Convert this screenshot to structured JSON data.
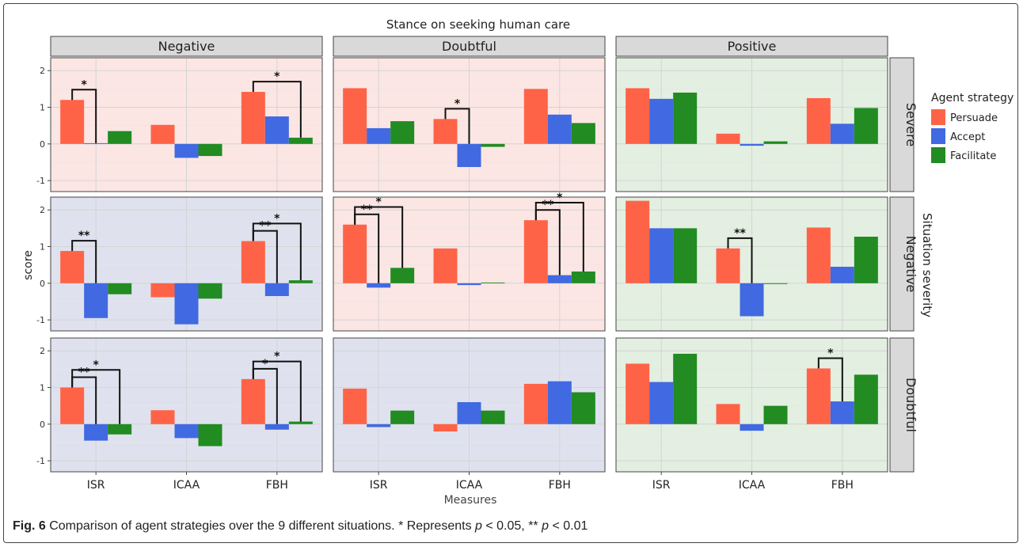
{
  "caption": {
    "label": "Fig. 6",
    "text": " Comparison of agent strategies over the 9 different situations. * Represents ",
    "p1": "p",
    "t1": " < 0.05, ** ",
    "p2": "p",
    "t2": " < 0.01"
  },
  "chart_data": {
    "type": "bar",
    "title": "Stance on seeking human care",
    "xlabel": "Measures",
    "ylabel": "score",
    "right_strip_label": "Situation severity",
    "categories": [
      "ISR",
      "ICAA",
      "FBH"
    ],
    "ylim": [
      -1.3,
      2.35
    ],
    "yticks": [
      -1,
      0,
      1,
      2
    ],
    "grid": true,
    "legend": {
      "title": "Agent strategy",
      "position": "right",
      "entries": [
        "Persuade",
        "Accept",
        "Facilitate"
      ]
    },
    "series_colors": [
      "#ff6347",
      "#4169e1",
      "#228b22"
    ],
    "bg_colors": {
      "pink": "#fbe6e4",
      "blue": "#dfe2ee",
      "green": "#e3efe1"
    },
    "columns": [
      "Negative",
      "Doubtful",
      "Positive"
    ],
    "rows": [
      "Severe",
      "Negative",
      "Doubtful"
    ],
    "panels": [
      {
        "row": "Severe",
        "col": "Negative",
        "bg": "pink",
        "series": [
          {
            "name": "Persuade",
            "values": [
              1.2,
              0.52,
              1.42
            ]
          },
          {
            "name": "Accept",
            "values": [
              0.02,
              -0.38,
              0.75
            ]
          },
          {
            "name": "Facilitate",
            "values": [
              0.35,
              -0.33,
              0.17
            ]
          }
        ],
        "sig": [
          {
            "cat": 0,
            "to": 1,
            "label": "*",
            "level": 0
          },
          {
            "cat": 2,
            "to": 2,
            "label": "*",
            "level": 0
          }
        ]
      },
      {
        "row": "Severe",
        "col": "Doubtful",
        "bg": "pink",
        "series": [
          {
            "name": "Persuade",
            "values": [
              1.52,
              0.68,
              1.5
            ]
          },
          {
            "name": "Accept",
            "values": [
              0.43,
              -0.63,
              0.8
            ]
          },
          {
            "name": "Facilitate",
            "values": [
              0.62,
              -0.08,
              0.57
            ]
          }
        ],
        "sig": [
          {
            "cat": 1,
            "to": 1,
            "label": "*",
            "level": 0
          }
        ]
      },
      {
        "row": "Severe",
        "col": "Positive",
        "bg": "green",
        "series": [
          {
            "name": "Persuade",
            "values": [
              1.52,
              0.28,
              1.25
            ]
          },
          {
            "name": "Accept",
            "values": [
              1.23,
              -0.05,
              0.55
            ]
          },
          {
            "name": "Facilitate",
            "values": [
              1.4,
              0.07,
              0.98
            ]
          }
        ],
        "sig": []
      },
      {
        "row": "Negative",
        "col": "Negative",
        "bg": "blue",
        "series": [
          {
            "name": "Persuade",
            "values": [
              0.88,
              -0.38,
              1.15
            ]
          },
          {
            "name": "Accept",
            "values": [
              -0.95,
              -1.12,
              -0.35
            ]
          },
          {
            "name": "Facilitate",
            "values": [
              -0.3,
              -0.42,
              0.08
            ]
          }
        ],
        "sig": [
          {
            "cat": 0,
            "to": 1,
            "label": "**",
            "level": 0
          },
          {
            "cat": 2,
            "to": 1,
            "label": "**",
            "level": 0
          },
          {
            "cat": 2,
            "to": 2,
            "label": "*",
            "level": 1
          }
        ]
      },
      {
        "row": "Negative",
        "col": "Doubtful",
        "bg": "pink",
        "series": [
          {
            "name": "Persuade",
            "values": [
              1.6,
              0.95,
              1.72
            ]
          },
          {
            "name": "Accept",
            "values": [
              -0.12,
              -0.05,
              0.22
            ]
          },
          {
            "name": "Facilitate",
            "values": [
              0.42,
              0.02,
              0.32
            ]
          }
        ],
        "sig": [
          {
            "cat": 0,
            "to": 1,
            "label": "**",
            "level": 0
          },
          {
            "cat": 0,
            "to": 2,
            "label": "*",
            "level": 1
          },
          {
            "cat": 2,
            "to": 1,
            "label": "**",
            "level": 0
          },
          {
            "cat": 2,
            "to": 2,
            "label": "*",
            "level": 1
          }
        ]
      },
      {
        "row": "Negative",
        "col": "Positive",
        "bg": "green",
        "series": [
          {
            "name": "Persuade",
            "values": [
              2.25,
              0.95,
              1.52
            ]
          },
          {
            "name": "Accept",
            "values": [
              1.5,
              -0.9,
              0.45
            ]
          },
          {
            "name": "Facilitate",
            "values": [
              1.5,
              -0.02,
              1.27
            ]
          }
        ],
        "sig": [
          {
            "cat": 1,
            "to": 1,
            "label": "**",
            "level": 0
          }
        ]
      },
      {
        "row": "Doubtful",
        "col": "Negative",
        "bg": "blue",
        "series": [
          {
            "name": "Persuade",
            "values": [
              1.0,
              0.38,
              1.23
            ]
          },
          {
            "name": "Accept",
            "values": [
              -0.45,
              -0.38,
              -0.15
            ]
          },
          {
            "name": "Facilitate",
            "values": [
              -0.28,
              -0.6,
              0.07
            ]
          }
        ],
        "sig": [
          {
            "cat": 0,
            "to": 1,
            "label": "**",
            "level": 0
          },
          {
            "cat": 0,
            "to": 2,
            "label": "*",
            "level": 1
          },
          {
            "cat": 2,
            "to": 1,
            "label": "*",
            "level": 0
          },
          {
            "cat": 2,
            "to": 2,
            "label": "*",
            "level": 1
          }
        ]
      },
      {
        "row": "Doubtful",
        "col": "Doubtful",
        "bg": "blue",
        "series": [
          {
            "name": "Persuade",
            "values": [
              0.97,
              -0.2,
              1.1
            ]
          },
          {
            "name": "Accept",
            "values": [
              -0.08,
              0.6,
              1.17
            ]
          },
          {
            "name": "Facilitate",
            "values": [
              0.37,
              0.37,
              0.87
            ]
          }
        ],
        "sig": []
      },
      {
        "row": "Doubtful",
        "col": "Positive",
        "bg": "green",
        "series": [
          {
            "name": "Persuade",
            "values": [
              1.65,
              0.55,
              1.52
            ]
          },
          {
            "name": "Accept",
            "values": [
              1.15,
              -0.18,
              0.62
            ]
          },
          {
            "name": "Facilitate",
            "values": [
              1.92,
              0.5,
              1.35
            ]
          }
        ],
        "sig": [
          {
            "cat": 2,
            "to": 1,
            "label": "*",
            "level": 0
          }
        ]
      }
    ]
  }
}
